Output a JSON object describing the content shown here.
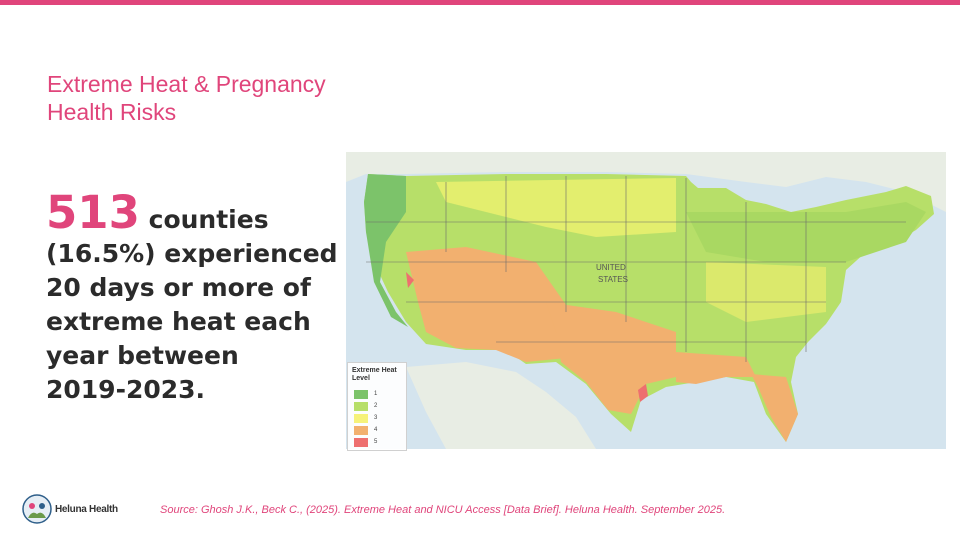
{
  "accent_color": "#e0457b",
  "title": {
    "line1": "Extreme Heat & Pregnancy",
    "line2": "Health Risks"
  },
  "stat": {
    "number": "513",
    "lead": " counties",
    "lines": [
      "(16.5%) experienced",
      "20 days or more of",
      "extreme heat each",
      "year between",
      "2019-2023."
    ]
  },
  "map": {
    "country_label_1": "UNITED",
    "country_label_2": "STATES",
    "legend": {
      "title_line1": "Extreme Heat",
      "title_line2": "Level",
      "levels": [
        {
          "label": "1",
          "color": "#7cc36a"
        },
        {
          "label": "2",
          "color": "#b7df69"
        },
        {
          "label": "3",
          "color": "#f6f27a"
        },
        {
          "label": "4",
          "color": "#f2b06f"
        },
        {
          "label": "5",
          "color": "#ee6f6f"
        }
      ]
    }
  },
  "footer": {
    "logo_text": "Heluna Health",
    "source": "Source: Ghosh J.K., Beck C., (2025). Extreme Heat and NICU Access [Data Brief]. Heluna Health. September 2025."
  }
}
